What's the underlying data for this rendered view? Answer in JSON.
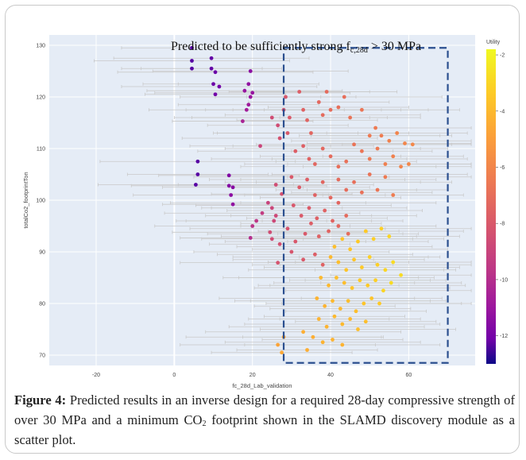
{
  "chart_data": {
    "type": "scatter",
    "title": "Predicted to be sufficiently strong f",
    "title_sub": "c,28d",
    "title_suffix": " > 30 MPa",
    "xlabel": "fc_28d_Lab_validation",
    "ylabel": "totalCo2_footprintTon",
    "xlim": [
      -32,
      77
    ],
    "ylim": [
      68,
      132
    ],
    "xticks": [
      "-20",
      "0",
      "20",
      "40",
      "60"
    ],
    "xtick_values": [
      -20,
      0,
      20,
      40,
      60
    ],
    "yticks": [
      "70",
      "80",
      "90",
      "100",
      "110",
      "120",
      "130"
    ],
    "ytick_values": [
      70,
      80,
      90,
      100,
      110,
      120,
      130
    ],
    "grid": true,
    "colorbar": {
      "title": "Utility",
      "range": [
        -13,
        -1.8
      ],
      "ticks": [
        "-2",
        "-4",
        "-6",
        "-8",
        "-10",
        "-12"
      ],
      "tick_values": [
        -2,
        -4,
        -6,
        -8,
        -10,
        -12
      ]
    },
    "highlight_region": {
      "x": [
        28,
        70
      ],
      "y": [
        68.5,
        129.5
      ]
    },
    "points": [
      [
        4.5,
        129.5,
        -12
      ],
      [
        4.5,
        127.0,
        -12
      ],
      [
        4.5,
        125.5,
        -12
      ],
      [
        9.5,
        127.5,
        -11.5
      ],
      [
        9.5,
        125.5,
        -11.5
      ],
      [
        10.5,
        124.8,
        -11.3
      ],
      [
        10.0,
        122.5,
        -11.2
      ],
      [
        11.5,
        122.0,
        -11
      ],
      [
        10.5,
        120.5,
        -11
      ],
      [
        19.5,
        125.0,
        -10.2
      ],
      [
        19.0,
        122.5,
        -10
      ],
      [
        20.0,
        120.8,
        -9.8
      ],
      [
        19.5,
        120.0,
        -9.7
      ],
      [
        18.0,
        121.2,
        -9.8
      ],
      [
        19.0,
        118.5,
        -9.5
      ],
      [
        18.5,
        117.5,
        -9.3
      ],
      [
        17.5,
        115.3,
        -9
      ],
      [
        6.0,
        107.5,
        -12
      ],
      [
        6.0,
        105.0,
        -12
      ],
      [
        5.5,
        103.0,
        -12
      ],
      [
        14.0,
        104.8,
        -10.5
      ],
      [
        14.0,
        102.8,
        -10.4
      ],
      [
        15.0,
        102.5,
        -10.3
      ],
      [
        14.5,
        101.0,
        -10.2
      ],
      [
        15.0,
        99.2,
        -10
      ],
      [
        20.0,
        95.0,
        -8.2
      ],
      [
        21.0,
        96.0,
        -8
      ],
      [
        22.5,
        97.5,
        -7.8
      ],
      [
        19.5,
        92.7,
        -8.5
      ],
      [
        24.0,
        99.5,
        -7.5
      ],
      [
        25.0,
        98.5,
        -7.3
      ],
      [
        25.5,
        96.0,
        -7.2
      ],
      [
        26.0,
        97.0,
        -7.2
      ],
      [
        24.5,
        93.8,
        -7.0
      ],
      [
        27.0,
        91.5,
        -6.8
      ],
      [
        26.5,
        87.9,
        -6.7
      ],
      [
        25.0,
        92.5,
        -7.0
      ],
      [
        26.0,
        103.0,
        -7.0
      ],
      [
        27.5,
        101.2,
        -6.8
      ],
      [
        25.0,
        116.0,
        -7
      ],
      [
        26.5,
        114.5,
        -7
      ],
      [
        27.0,
        112.0,
        -6.8
      ],
      [
        22.0,
        110.5,
        -7.4
      ],
      [
        28.0,
        117.5,
        -6.6
      ],
      [
        28.5,
        120.0,
        -6.5
      ],
      [
        29.5,
        116.0,
        -6.4
      ],
      [
        29.0,
        113.0,
        -6.4
      ],
      [
        28.0,
        73.5,
        -3.2
      ],
      [
        27.5,
        70.5,
        -3.2
      ],
      [
        26.5,
        72.0,
        -3.3
      ],
      [
        32.0,
        121.0,
        -6.2
      ],
      [
        33.0,
        117.5,
        -6.0
      ],
      [
        34.0,
        115.5,
        -5.9
      ],
      [
        35.0,
        113.0,
        -5.8
      ],
      [
        37.0,
        119.0,
        -5.7
      ],
      [
        38.0,
        116.5,
        -5.6
      ],
      [
        39.0,
        121.0,
        -5.6
      ],
      [
        40.0,
        117.5,
        -5.5
      ],
      [
        42.0,
        118.0,
        -5.4
      ],
      [
        43.5,
        120.0,
        -5.4
      ],
      [
        45.0,
        116.0,
        -5.2
      ],
      [
        48.0,
        117.5,
        -5.1
      ],
      [
        50.0,
        112.5,
        -4.9
      ],
      [
        51.5,
        114.0,
        -4.9
      ],
      [
        53.0,
        112.5,
        -4.8
      ],
      [
        55.0,
        111.5,
        -4.6
      ],
      [
        57.0,
        113.0,
        -4.5
      ],
      [
        59.0,
        111.0,
        -4.4
      ],
      [
        61.0,
        110.8,
        -4.3
      ],
      [
        31.0,
        109.5,
        -6.2
      ],
      [
        33.0,
        110.5,
        -6.1
      ],
      [
        34.5,
        108.0,
        -6.0
      ],
      [
        36.0,
        107.0,
        -5.8
      ],
      [
        38.0,
        110.0,
        -5.7
      ],
      [
        40.0,
        108.5,
        -5.6
      ],
      [
        42.0,
        106.5,
        -5.4
      ],
      [
        44.0,
        107.5,
        -5.3
      ],
      [
        46.0,
        110.8,
        -5.2
      ],
      [
        48.0,
        109.5,
        -5.1
      ],
      [
        50.0,
        108.0,
        -5.0
      ],
      [
        52.0,
        110.0,
        -4.9
      ],
      [
        54.0,
        107.0,
        -4.7
      ],
      [
        56.0,
        108.5,
        -4.6
      ],
      [
        58.0,
        106.5,
        -4.5
      ],
      [
        60.0,
        107.0,
        -4.4
      ],
      [
        30.0,
        104.5,
        -6.4
      ],
      [
        32.0,
        102.5,
        -6.3
      ],
      [
        34.0,
        104.0,
        -6.2
      ],
      [
        36.0,
        101.0,
        -6.0
      ],
      [
        38.0,
        103.5,
        -5.8
      ],
      [
        40.0,
        100.5,
        -5.7
      ],
      [
        42.0,
        104.0,
        -5.6
      ],
      [
        44.0,
        102.0,
        -5.5
      ],
      [
        46.0,
        103.5,
        -5.4
      ],
      [
        48.0,
        101.5,
        -5.3
      ],
      [
        50.0,
        105.0,
        -5.2
      ],
      [
        52.0,
        102.0,
        -5.1
      ],
      [
        54.0,
        104.5,
        -4.9
      ],
      [
        56.0,
        101.0,
        -4.8
      ],
      [
        30.5,
        99.0,
        -6.5
      ],
      [
        32.5,
        97.0,
        -6.4
      ],
      [
        34.5,
        98.5,
        -6.3
      ],
      [
        36.5,
        96.5,
        -6.1
      ],
      [
        38.5,
        98.0,
        -6.0
      ],
      [
        40.5,
        96.0,
        -5.9
      ],
      [
        42.0,
        99.5,
        -5.8
      ],
      [
        44.0,
        97.0,
        -5.6
      ],
      [
        29.0,
        94.5,
        -6.7
      ],
      [
        31.0,
        92.0,
        -6.5
      ],
      [
        33.5,
        93.5,
        -6.4
      ],
      [
        35.0,
        95.5,
        -6.2
      ],
      [
        37.0,
        93.0,
        -6.0
      ],
      [
        39.5,
        94.0,
        -5.9
      ],
      [
        42.0,
        95.0,
        -5.7
      ],
      [
        44.5,
        93.5,
        -5.5
      ],
      [
        41.0,
        91.0,
        -2.8
      ],
      [
        43.0,
        92.5,
        -2.7
      ],
      [
        45.0,
        90.5,
        -2.7
      ],
      [
        47.0,
        92.0,
        -2.6
      ],
      [
        49.0,
        94.0,
        -2.6
      ],
      [
        51.0,
        92.5,
        -2.5
      ],
      [
        53.0,
        94.5,
        -2.5
      ],
      [
        55.0,
        93.0,
        -2.4
      ],
      [
        30.0,
        90.0,
        -6.6
      ],
      [
        33.0,
        88.5,
        -6.4
      ],
      [
        36.0,
        89.5,
        -6.2
      ],
      [
        38.0,
        87.5,
        -6.0
      ],
      [
        40.0,
        89.0,
        -2.9
      ],
      [
        42.0,
        88.0,
        -2.8
      ],
      [
        44.0,
        86.5,
        -2.7
      ],
      [
        46.0,
        88.5,
        -2.7
      ],
      [
        48.0,
        87.0,
        -2.6
      ],
      [
        50.0,
        89.0,
        -2.5
      ],
      [
        52.0,
        87.5,
        -2.5
      ],
      [
        54.0,
        86.5,
        -2.4
      ],
      [
        56.0,
        88.0,
        -2.3
      ],
      [
        58.0,
        85.5,
        -2.3
      ],
      [
        37.5,
        85.0,
        -2.9
      ],
      [
        39.5,
        83.5,
        -2.9
      ],
      [
        41.5,
        85.0,
        -2.8
      ],
      [
        43.5,
        84.0,
        -2.8
      ],
      [
        45.5,
        83.0,
        -2.7
      ],
      [
        47.5,
        84.5,
        -2.6
      ],
      [
        49.5,
        83.5,
        -2.6
      ],
      [
        51.5,
        84.5,
        -2.5
      ],
      [
        53.5,
        82.5,
        -2.4
      ],
      [
        55.5,
        84.0,
        -2.3
      ],
      [
        36.5,
        81.0,
        -3.0
      ],
      [
        38.5,
        79.5,
        -3.0
      ],
      [
        40.5,
        80.5,
        -2.9
      ],
      [
        42.5,
        79.0,
        -2.9
      ],
      [
        44.5,
        80.5,
        -2.8
      ],
      [
        46.5,
        78.5,
        -2.8
      ],
      [
        48.5,
        80.0,
        -2.7
      ],
      [
        50.5,
        81.0,
        -2.7
      ],
      [
        52.5,
        80.0,
        -2.6
      ],
      [
        37.0,
        77.0,
        -3.0
      ],
      [
        39.0,
        75.5,
        -3.0
      ],
      [
        41.0,
        77.5,
        -2.9
      ],
      [
        43.0,
        76.0,
        -2.9
      ],
      [
        45.0,
        77.0,
        -2.9
      ],
      [
        47.0,
        75.0,
        -2.8
      ],
      [
        49.0,
        76.5,
        -2.8
      ],
      [
        33.0,
        74.5,
        -3.1
      ],
      [
        35.5,
        73.5,
        -3.1
      ],
      [
        38.0,
        72.5,
        -3.0
      ],
      [
        40.5,
        73.0,
        -3.0
      ],
      [
        43.0,
        72.0,
        -3.0
      ],
      [
        34.0,
        71.0,
        -3.1
      ]
    ]
  },
  "caption": {
    "label": "Figure 4:",
    "text_before_sub": " Predicted results in an inverse design for a required 28-day compressive strength of over 30 MPa and a minimum CO",
    "sub": "2",
    "text_after_sub": " footprint shown in the SLAMD discovery module as a scatter plot."
  },
  "colors": {
    "plot_background": "#e5ecf6",
    "highlight_box": "#2b4f8f",
    "error_bar": "#c9c9c9"
  }
}
